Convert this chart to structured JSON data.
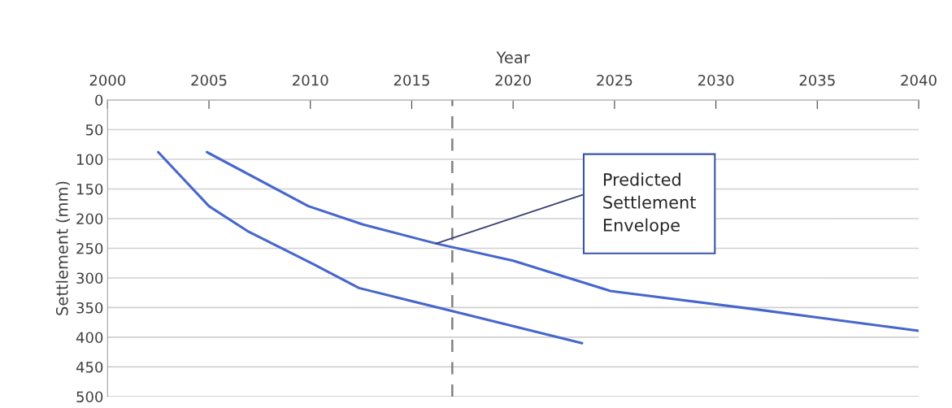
{
  "chart_data": {
    "type": "line",
    "xlabel": "Year",
    "ylabel": "Settlement (mm)",
    "xlim": [
      2000,
      2040
    ],
    "xticks": [
      2000,
      2005,
      2010,
      2015,
      2020,
      2025,
      2030,
      2035,
      2040
    ],
    "ylim": [
      500,
      0
    ],
    "yticks": [
      0,
      50,
      100,
      150,
      200,
      250,
      300,
      350,
      400,
      450,
      500
    ],
    "grid": "y",
    "marker": "none",
    "line_style": "solid",
    "series": [
      {
        "color": "#4666cc",
        "x": [
          2002.5,
          2005,
          2006.9,
          2010.1,
          2012.4,
          2017,
          2023.4
        ],
        "values": [
          88,
          179,
          221,
          276,
          317,
          356,
          410
        ]
      },
      {
        "color": "#4666cc",
        "x": [
          2004.9,
          2009.9,
          2012.6,
          2016.2,
          2020,
          2024.8,
          2032.2,
          2040
        ],
        "values": [
          88,
          179,
          210,
          242,
          271,
          322,
          354,
          389
        ]
      }
    ],
    "ref_lines": [
      {
        "axis": "x",
        "value": 2017,
        "color": "#808080",
        "line_style": "dashed"
      }
    ],
    "annotations": [
      {
        "text": "Predicted\nSettlement\nEnvelope",
        "x": 2016.2,
        "y": 242
      }
    ]
  }
}
